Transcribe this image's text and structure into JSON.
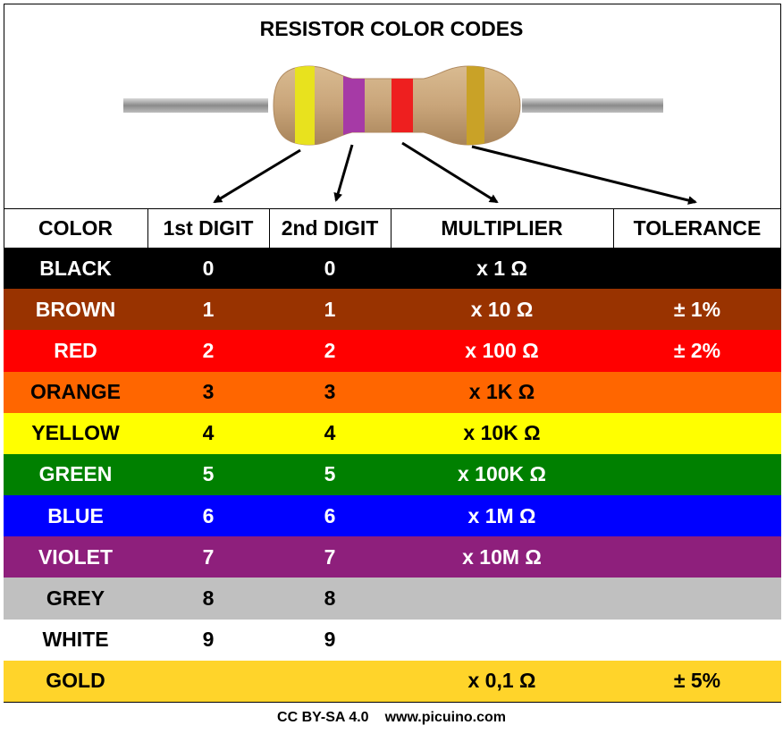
{
  "title": "RESISTOR COLOR CODES",
  "resistor": {
    "body_color": "#c9a57a",
    "lead_color": "#9b9b9b",
    "bands": [
      {
        "name": "1st-digit-band",
        "color": "#e8e21e"
      },
      {
        "name": "2nd-digit-band",
        "color": "#a63aa6"
      },
      {
        "name": "multiplier-band",
        "color": "#ee1f1f"
      },
      {
        "name": "tolerance-band",
        "color": "#c9a227"
      }
    ]
  },
  "headers": {
    "color": "COLOR",
    "digit1": "1st DIGIT",
    "digit2": "2nd DIGIT",
    "multiplier": "MULTIPLIER",
    "tolerance": "TOLERANCE"
  },
  "rows": [
    {
      "color": "BLACK",
      "digit1": "0",
      "digit2": "0",
      "multiplier": "x 1 Ω",
      "tolerance": "",
      "bg": "#000000",
      "fg": "#ffffff"
    },
    {
      "color": "BROWN",
      "digit1": "1",
      "digit2": "1",
      "multiplier": "x 10 Ω",
      "tolerance": "± 1%",
      "bg": "#993300",
      "fg": "#ffffff"
    },
    {
      "color": "RED",
      "digit1": "2",
      "digit2": "2",
      "multiplier": "x 100 Ω",
      "tolerance": "± 2%",
      "bg": "#ff0000",
      "fg": "#ffffff"
    },
    {
      "color": "ORANGE",
      "digit1": "3",
      "digit2": "3",
      "multiplier": "x 1K Ω",
      "tolerance": "",
      "bg": "#ff6600",
      "fg": "#000000"
    },
    {
      "color": "YELLOW",
      "digit1": "4",
      "digit2": "4",
      "multiplier": "x 10K Ω",
      "tolerance": "",
      "bg": "#ffff00",
      "fg": "#000000"
    },
    {
      "color": "GREEN",
      "digit1": "5",
      "digit2": "5",
      "multiplier": "x 100K Ω",
      "tolerance": "",
      "bg": "#008000",
      "fg": "#ffffff"
    },
    {
      "color": "BLUE",
      "digit1": "6",
      "digit2": "6",
      "multiplier": "x 1M Ω",
      "tolerance": "",
      "bg": "#0000ff",
      "fg": "#ffffff"
    },
    {
      "color": "VIOLET",
      "digit1": "7",
      "digit2": "7",
      "multiplier": "x 10M Ω",
      "tolerance": "",
      "bg": "#8e1f7c",
      "fg": "#ffffff"
    },
    {
      "color": "GREY",
      "digit1": "8",
      "digit2": "8",
      "multiplier": "",
      "tolerance": "",
      "bg": "#c0c0c0",
      "fg": "#000000"
    },
    {
      "color": "WHITE",
      "digit1": "9",
      "digit2": "9",
      "multiplier": "",
      "tolerance": "",
      "bg": "#ffffff",
      "fg": "#000000"
    },
    {
      "color": "GOLD",
      "digit1": "",
      "digit2": "",
      "multiplier": "x 0,1 Ω",
      "tolerance": "± 5%",
      "bg": "#ffd42a",
      "fg": "#000000"
    }
  ],
  "footer": {
    "license": "CC BY-SA 4.0",
    "website": "www.picuino.com"
  }
}
